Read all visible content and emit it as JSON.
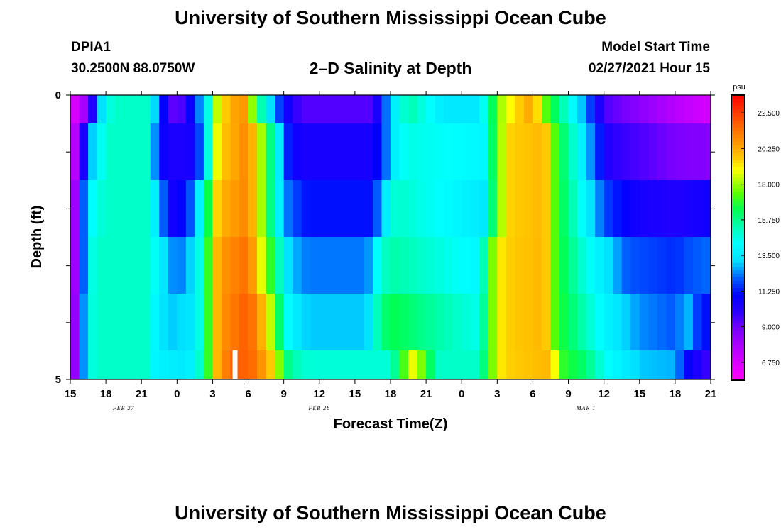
{
  "header": {
    "title": "University of Southern Mississippi Ocean Cube",
    "station": "DPIA1",
    "coordinates": "30.2500N 88.0750W",
    "plot_title": "2–D Salinity at Depth",
    "model_start_label": "Model Start Time",
    "model_start_value": "02/27/2021 Hour 15"
  },
  "footer": {
    "title": "University of Southern Mississippi Ocean Cube"
  },
  "chart_data": {
    "type": "heatmap",
    "title": "2–D Salinity at Depth",
    "xlabel": "Forecast Time(Z)",
    "ylabel": "Depth (ft)",
    "x_range_hours": [
      0,
      54
    ],
    "y_range": [
      0,
      5
    ],
    "y_ticks": [
      "0",
      "5"
    ],
    "x_tick_labels": [
      "15",
      "18",
      "21",
      "0",
      "3",
      "6",
      "9",
      "12",
      "15",
      "18",
      "21",
      "0",
      "3",
      "6",
      "9",
      "12",
      "15",
      "18",
      "21"
    ],
    "date_labels": [
      {
        "text": "FEB 27",
        "hour": 4.5
      },
      {
        "text": "FEB 28",
        "hour": 21
      },
      {
        "text": "MAR 1",
        "hour": 43.5
      }
    ],
    "colorbar": {
      "unit": "psu",
      "min": 5.625,
      "max": 23.625,
      "tick_labels": [
        "22.500",
        "20.250",
        "18.000",
        "15.750",
        "13.500",
        "11.250",
        "9.000",
        "6.750"
      ],
      "tick_values": [
        22.5,
        20.25,
        18.0,
        15.75,
        13.5,
        11.25,
        9.0,
        6.75
      ]
    },
    "hour_step": 0.75,
    "depth_rows": [
      {
        "label": "layer-1",
        "keyframes": [
          [
            0,
            6.2
          ],
          [
            1.5,
            8.5
          ],
          [
            2.5,
            13
          ],
          [
            3.5,
            15
          ],
          [
            6.5,
            15
          ],
          [
            7.5,
            12
          ],
          [
            8.5,
            9.2
          ],
          [
            9.5,
            9.5
          ],
          [
            10.5,
            11.5
          ],
          [
            11.5,
            14
          ],
          [
            12.5,
            19
          ],
          [
            14.5,
            21
          ],
          [
            15.5,
            17.5
          ],
          [
            16.5,
            14
          ],
          [
            18,
            11
          ],
          [
            19.5,
            9.4
          ],
          [
            25.5,
            9.4
          ],
          [
            26.5,
            12
          ],
          [
            27.5,
            14
          ],
          [
            28.5,
            15.5
          ],
          [
            31.5,
            13.5
          ],
          [
            34.5,
            13.5
          ],
          [
            35.5,
            16
          ],
          [
            36.5,
            18.5
          ],
          [
            39,
            20.5
          ],
          [
            40,
            17.5
          ],
          [
            42.5,
            14
          ],
          [
            44,
            11.5
          ],
          [
            45,
            9.5
          ],
          [
            48,
            8.5
          ],
          [
            51,
            7.6
          ],
          [
            54,
            6.8
          ]
        ]
      },
      {
        "label": "layer-2",
        "keyframes": [
          [
            0,
            6.2
          ],
          [
            1.3,
            11
          ],
          [
            2,
            13.5
          ],
          [
            3,
            15
          ],
          [
            6.5,
            15
          ],
          [
            7.5,
            11
          ],
          [
            8.5,
            10.3
          ],
          [
            10.5,
            10.5
          ],
          [
            11.5,
            14
          ],
          [
            12.5,
            19.5
          ],
          [
            15,
            21
          ],
          [
            16,
            18.5
          ],
          [
            17.5,
            14
          ],
          [
            18.5,
            11
          ],
          [
            19.5,
            10.4
          ],
          [
            25.5,
            10.4
          ],
          [
            26.5,
            12
          ],
          [
            27.5,
            14
          ],
          [
            28.5,
            14.6
          ],
          [
            35,
            14
          ],
          [
            36,
            17.5
          ],
          [
            37,
            19.5
          ],
          [
            40,
            20
          ],
          [
            41,
            17
          ],
          [
            43,
            14
          ],
          [
            44.5,
            11.5
          ],
          [
            45.5,
            10
          ],
          [
            48,
            9.5
          ],
          [
            51,
            8.8
          ],
          [
            54,
            8.6
          ]
        ]
      },
      {
        "label": "layer-3",
        "keyframes": [
          [
            0,
            6.2
          ],
          [
            1.3,
            13
          ],
          [
            2,
            14.5
          ],
          [
            3,
            15
          ],
          [
            6.5,
            15
          ],
          [
            7.5,
            13
          ],
          [
            8.5,
            10.5
          ],
          [
            9.5,
            11
          ],
          [
            10.5,
            12.5
          ],
          [
            11.5,
            16
          ],
          [
            12.5,
            20
          ],
          [
            15,
            21
          ],
          [
            16,
            18.5
          ],
          [
            17.5,
            14
          ],
          [
            18.5,
            12
          ],
          [
            20,
            11.2
          ],
          [
            25.5,
            11.2
          ],
          [
            26.5,
            13.5
          ],
          [
            27.5,
            15
          ],
          [
            35,
            13.5
          ],
          [
            36,
            17.5
          ],
          [
            37,
            19.5
          ],
          [
            40,
            20
          ],
          [
            41,
            17
          ],
          [
            43,
            14.5
          ],
          [
            44.5,
            12.5
          ],
          [
            45.5,
            11.5
          ],
          [
            48,
            10.5
          ],
          [
            51,
            10.2
          ],
          [
            54,
            10.6
          ]
        ]
      },
      {
        "label": "layer-4",
        "keyframes": [
          [
            0,
            6.2
          ],
          [
            1.3,
            13
          ],
          [
            2,
            15
          ],
          [
            6.5,
            15
          ],
          [
            7.5,
            14
          ],
          [
            8.5,
            12.5
          ],
          [
            9.5,
            12.4
          ],
          [
            10.5,
            13.5
          ],
          [
            11.5,
            16.5
          ],
          [
            12.5,
            20.5
          ],
          [
            15,
            21.5
          ],
          [
            16,
            19
          ],
          [
            17.5,
            15.5
          ],
          [
            18.5,
            13
          ],
          [
            20,
            12.3
          ],
          [
            25,
            12.3
          ],
          [
            26,
            14.5
          ],
          [
            27,
            15.5
          ],
          [
            34.5,
            14
          ],
          [
            35.5,
            17.5
          ],
          [
            36.5,
            19.5
          ],
          [
            40,
            20
          ],
          [
            41,
            17
          ],
          [
            43,
            15
          ],
          [
            45,
            13.5
          ],
          [
            47,
            12
          ],
          [
            51,
            11.5
          ],
          [
            52.5,
            12
          ],
          [
            54,
            12.2
          ]
        ]
      },
      {
        "label": "layer-5",
        "keyframes": [
          [
            0,
            6.2
          ],
          [
            1.3,
            13.5
          ],
          [
            2,
            15
          ],
          [
            6.5,
            15
          ],
          [
            7.5,
            13.5
          ],
          [
            8.5,
            13
          ],
          [
            10.5,
            13.5
          ],
          [
            11.5,
            16.5
          ],
          [
            12.5,
            20.5
          ],
          [
            15,
            22
          ],
          [
            16.5,
            19.5
          ],
          [
            17.5,
            16.5
          ],
          [
            18.5,
            14
          ],
          [
            20,
            13
          ],
          [
            25,
            13
          ],
          [
            26,
            15.5
          ],
          [
            27,
            16.5
          ],
          [
            34.5,
            14.5
          ],
          [
            35.5,
            17.5
          ],
          [
            36.5,
            19.5
          ],
          [
            40,
            20
          ],
          [
            41,
            17
          ],
          [
            43,
            15.5
          ],
          [
            45,
            14
          ],
          [
            48,
            12.5
          ],
          [
            51,
            12
          ],
          [
            52,
            13
          ],
          [
            53,
            11.5
          ],
          [
            54,
            11
          ]
        ]
      },
      {
        "label": "layer-6",
        "keyframes": [
          [
            0,
            6.2
          ],
          [
            1.3,
            13.5
          ],
          [
            2,
            15
          ],
          [
            6.5,
            15
          ],
          [
            7,
            14
          ],
          [
            9.5,
            13.5
          ],
          [
            10.5,
            14
          ],
          [
            11.5,
            16.5
          ],
          [
            12.5,
            20.5
          ],
          [
            14,
            22
          ],
          [
            15.5,
            21.5
          ],
          [
            17,
            19.5
          ],
          [
            18.5,
            15.5
          ],
          [
            20,
            14.8
          ],
          [
            27,
            14.8
          ],
          [
            28,
            17
          ],
          [
            29,
            19
          ],
          [
            30,
            17
          ],
          [
            31,
            15
          ],
          [
            34.5,
            15
          ],
          [
            35.5,
            17.5
          ],
          [
            36.5,
            19.5
          ],
          [
            40.5,
            20
          ],
          [
            41.5,
            17
          ],
          [
            43.5,
            16
          ],
          [
            45,
            14.5
          ],
          [
            48,
            13
          ],
          [
            51,
            12.8
          ],
          [
            52,
            11
          ],
          [
            54,
            9.5
          ]
        ]
      }
    ],
    "annotations": [
      {
        "type": "missing-data-gap",
        "hour": 13.5,
        "row": 5
      }
    ]
  }
}
